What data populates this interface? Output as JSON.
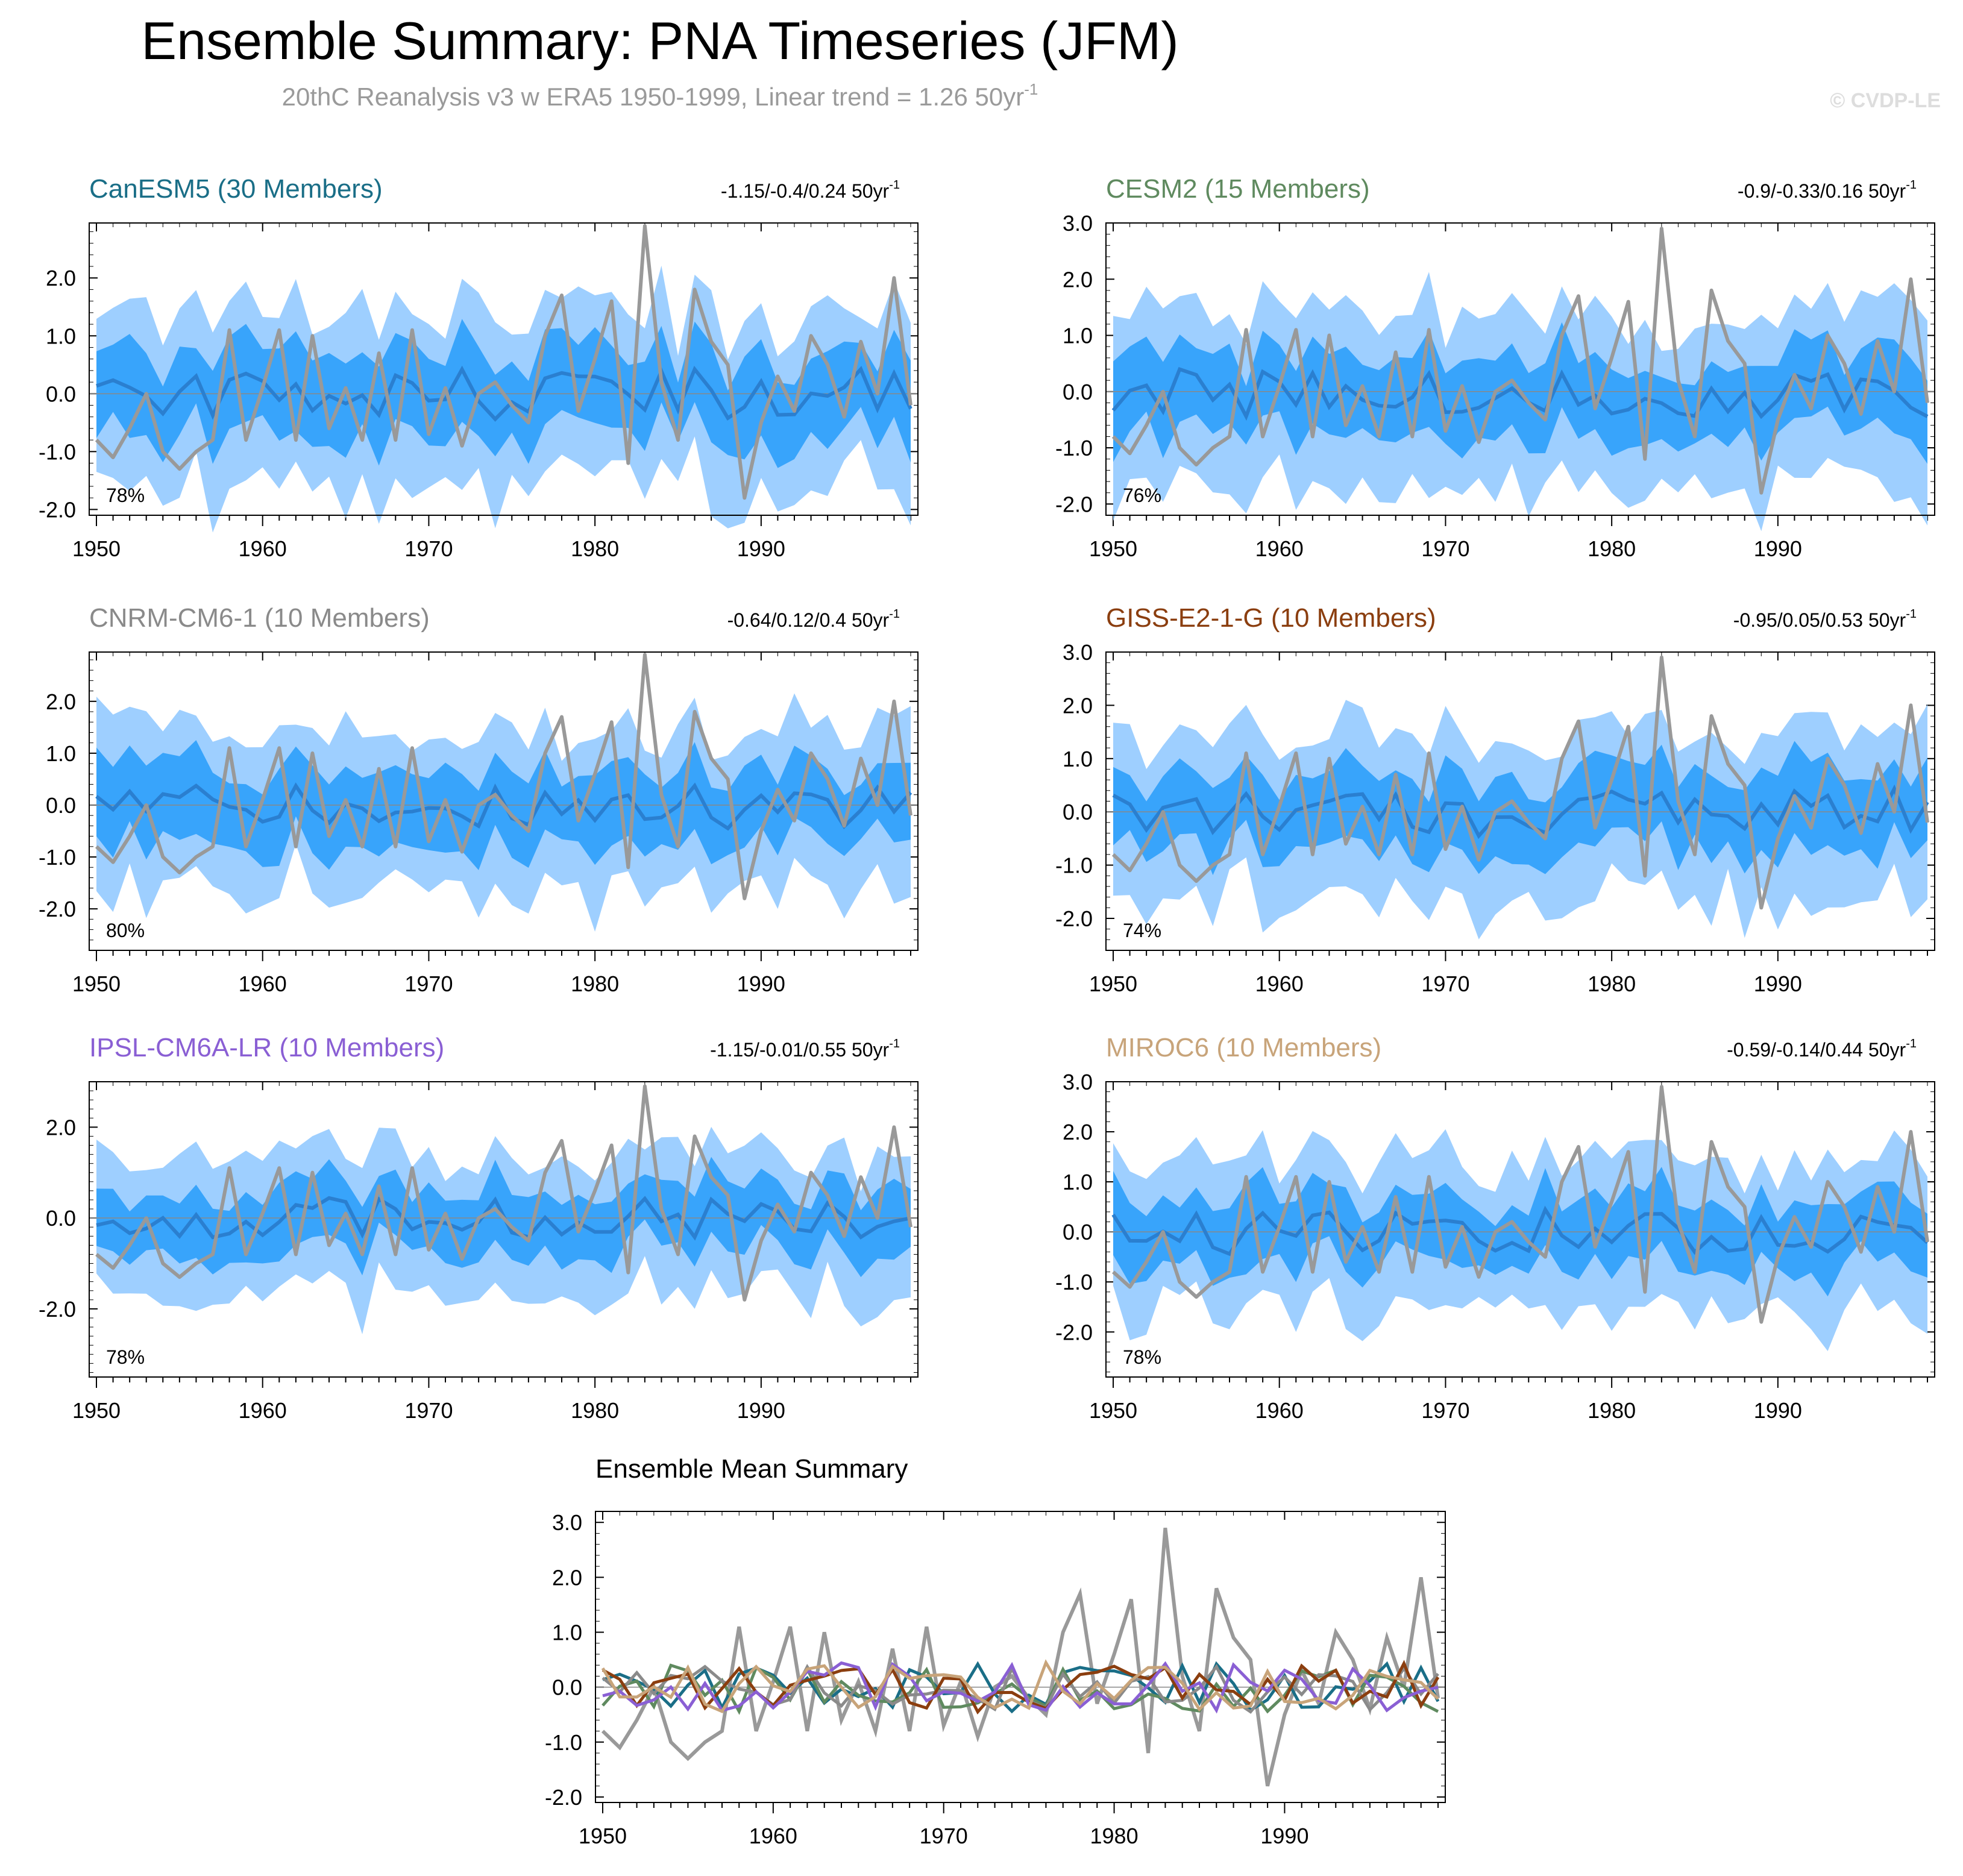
{
  "title": "Ensemble Summary: PNA Timeseries (JFM)",
  "subtitle": {
    "text": "20thC Reanalysis v3 w ERA5 1950-1999, Linear trend = 1.26 50yr",
    "sup": "-1"
  },
  "watermark": "© CVDP-LE",
  "colors": {
    "band_outer": "#9ecfff",
    "band_inner": "#38a4fb",
    "ens_mean": "#2a7fd0",
    "obs": "#999999",
    "zero_line": "#888888"
  },
  "years": [
    1950,
    1999
  ],
  "observed_pna": [
    -0.8,
    -1.1,
    -0.6,
    0.0,
    -1.0,
    -1.3,
    -1.0,
    -0.8,
    1.1,
    -0.8,
    0.1,
    1.1,
    -0.8,
    1.0,
    -0.6,
    0.1,
    -0.8,
    0.7,
    -0.8,
    1.1,
    -0.7,
    0.1,
    -0.9,
    0.0,
    0.2,
    -0.2,
    -0.5,
    1.0,
    1.7,
    -0.3,
    0.6,
    1.6,
    -1.2,
    2.9,
    0.2,
    -0.8,
    1.8,
    0.9,
    0.5,
    -1.8,
    -0.5,
    0.3,
    -0.3,
    1.0,
    0.5,
    -0.4,
    0.9,
    0.0,
    2.0,
    -0.2
  ],
  "models": [
    {
      "key": "canesm5",
      "name": "CanESM5 (30 Members)",
      "color": "#1a6e87",
      "trend": "-1.15/-0.4/0.24 50yr",
      "pct": "78%",
      "ymin": -2.1,
      "ymax": 2.95,
      "yticks": [
        "2.0",
        "1.0",
        "0.0",
        "-1.0",
        "-2.0"
      ],
      "seed": 11
    },
    {
      "key": "cesm2",
      "name": "CESM2 (15 Members)",
      "color": "#5f8a5f",
      "trend": "-0.9/-0.33/0.16 50yr",
      "pct": "76%",
      "ymin": -2.2,
      "ymax": 3.0,
      "yticks": [
        "3.0",
        "2.0",
        "1.0",
        "0.0",
        "-1.0",
        "-2.0"
      ],
      "seed": 23
    },
    {
      "key": "cnrm",
      "name": "CNRM-CM6-1 (10 Members)",
      "color": "#8a8a8a",
      "trend": "-0.64/0.12/0.4 50yr",
      "pct": "80%",
      "ymin": -2.8,
      "ymax": 2.95,
      "yticks": [
        "2.0",
        "1.0",
        "0.0",
        "-1.0",
        "-2.0"
      ],
      "seed": 37
    },
    {
      "key": "giss",
      "name": "GISS-E2-1-G (10 Members)",
      "color": "#8b3e0f",
      "trend": "-0.95/0.05/0.53 50yr",
      "pct": "74%",
      "ymin": -2.6,
      "ymax": 3.0,
      "yticks": [
        "3.0",
        "2.0",
        "1.0",
        "0.0",
        "-1.0",
        "-2.0"
      ],
      "seed": 41
    },
    {
      "key": "ipsl",
      "name": "IPSL-CM6A-LR (10 Members)",
      "color": "#8a5fd4",
      "trend": "-1.15/-0.01/0.55 50yr",
      "pct": "78%",
      "ymin": -3.5,
      "ymax": 3.0,
      "yticks": [
        "2.0",
        "0.0",
        "-2.0"
      ],
      "seed": 53
    },
    {
      "key": "miroc6",
      "name": "MIROC6 (10 Members)",
      "color": "#c8a47a",
      "trend": "-0.59/-0.14/0.44 50yr",
      "pct": "78%",
      "ymin": -2.9,
      "ymax": 3.0,
      "yticks": [
        "3.0",
        "2.0",
        "1.0",
        "0.0",
        "-1.0",
        "-2.0"
      ],
      "seed": 67
    }
  ],
  "xticks": [
    "1950",
    "1960",
    "1970",
    "1980",
    "1990"
  ],
  "summary": {
    "title": "Ensemble Mean Summary",
    "ymin": -2.1,
    "ymax": 3.2,
    "yticks": [
      "3.0",
      "2.0",
      "1.0",
      "0.0",
      "-1.0",
      "-2.0"
    ]
  },
  "chart_data": {
    "type": "line",
    "title": "Ensemble Summary: PNA Timeseries (JFM)",
    "x": "years 1950-1999 (annual JFM)",
    "observed": "observed_pna (20thC Reanalysis v3 w ERA5)",
    "panels": [
      "CanESM5",
      "CESM2",
      "CNRM-CM6-1",
      "GISS-E2-1-G",
      "IPSL-CM6A-LR",
      "MIROC6",
      "Ensemble Mean Summary"
    ],
    "series_description": "Each model panel: ensemble mean line, 25-75% band (dark blue), 10-90% band (light blue), observed PNA (gray)"
  }
}
